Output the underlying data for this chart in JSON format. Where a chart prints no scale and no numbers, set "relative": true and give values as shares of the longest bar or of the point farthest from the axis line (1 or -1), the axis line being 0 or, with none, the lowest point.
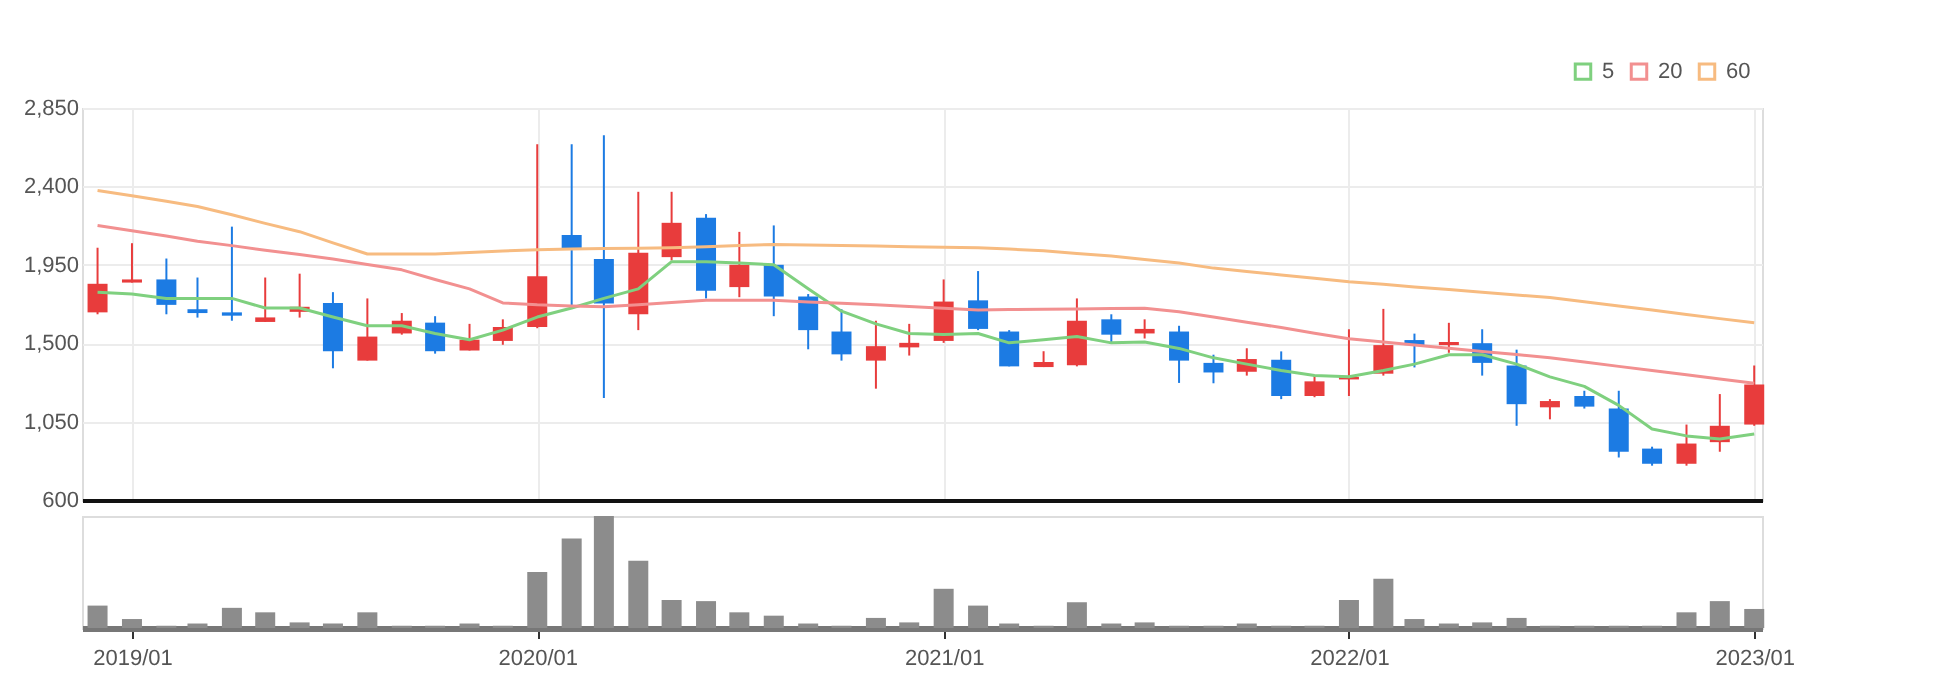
{
  "chart_data": [
    {
      "type": "candlestick",
      "x": [
        "2018-12",
        "2019-01",
        "2019-02",
        "2019-03",
        "2019-04",
        "2019-05",
        "2019-06",
        "2019-07",
        "2019-08",
        "2019-09",
        "2019-10",
        "2019-11",
        "2019-12",
        "2020-01",
        "2020-02",
        "2020-03",
        "2020-04",
        "2020-05",
        "2020-06",
        "2020-07",
        "2020-08",
        "2020-09",
        "2020-10",
        "2020-11",
        "2020-12",
        "2021-01",
        "2021-02",
        "2021-03",
        "2021-04",
        "2021-05",
        "2021-06",
        "2021-07",
        "2021-08",
        "2021-09",
        "2021-10",
        "2021-11",
        "2021-12",
        "2022-01",
        "2022-02",
        "2022-03",
        "2022-04",
        "2022-05",
        "2022-06",
        "2022-07",
        "2022-08",
        "2022-09",
        "2022-10",
        "2022-11",
        "2022-12",
        "2023-01"
      ],
      "ohlc": [
        [
          1677,
          2048,
          1666,
          1841
        ],
        [
          1848,
          2074,
          1848,
          1866
        ],
        [
          1866,
          1986,
          1666,
          1720
        ],
        [
          1695,
          1877,
          1647,
          1673
        ],
        [
          1677,
          2169,
          1629,
          1658
        ],
        [
          1622,
          1877,
          1622,
          1648
        ],
        [
          1680,
          1899,
          1647,
          1709
        ],
        [
          1731,
          1793,
          1356,
          1454
        ],
        [
          1400,
          1757,
          1400,
          1538
        ],
        [
          1556,
          1673,
          1549,
          1629
        ],
        [
          1618,
          1655,
          1440,
          1454
        ],
        [
          1458,
          1611,
          1458,
          1520
        ],
        [
          1513,
          1637,
          1491,
          1593
        ],
        [
          1593,
          2642,
          1586,
          1884
        ],
        [
          2121,
          2642,
          1702,
          2037
        ],
        [
          1983,
          2693,
          1185,
          1728
        ],
        [
          1666,
          2369,
          1575,
          2019
        ],
        [
          1994,
          2369,
          1975,
          2191
        ],
        [
          2220,
          2241,
          1757,
          1801
        ],
        [
          1822,
          2139,
          1764,
          1950
        ],
        [
          1950,
          2176,
          1655,
          1768
        ],
        [
          1768,
          1782,
          1465,
          1575
        ],
        [
          1567,
          1695,
          1400,
          1436
        ],
        [
          1400,
          1629,
          1239,
          1483
        ],
        [
          1476,
          1611,
          1429,
          1502
        ],
        [
          1513,
          1866,
          1502,
          1739
        ],
        [
          1746,
          1914,
          1575,
          1582
        ],
        [
          1567,
          1575,
          1367,
          1367
        ],
        [
          1363,
          1454,
          1363,
          1392
        ],
        [
          1374,
          1757,
          1367,
          1629
        ],
        [
          1637,
          1666,
          1502,
          1549
        ],
        [
          1556,
          1637,
          1527,
          1582
        ],
        [
          1567,
          1600,
          1272,
          1400
        ],
        [
          1387,
          1434,
          1270,
          1332
        ],
        [
          1336,
          1471,
          1314,
          1409
        ],
        [
          1405,
          1453,
          1179,
          1197
        ],
        [
          1197,
          1314,
          1190,
          1281
        ],
        [
          1292,
          1580,
          1197,
          1307
        ],
        [
          1325,
          1697,
          1314,
          1489
        ],
        [
          1518,
          1555,
          1361,
          1489
        ],
        [
          1489,
          1617,
          1445,
          1507
        ],
        [
          1500,
          1580,
          1314,
          1387
        ],
        [
          1372,
          1463,
          1026,
          1150
        ],
        [
          1132,
          1179,
          1063,
          1168
        ],
        [
          1197,
          1227,
          1125,
          1136
        ],
        [
          1125,
          1227,
          844,
          877
        ],
        [
          895,
          906,
          797,
          808
        ],
        [
          808,
          1033,
          797,
          924
        ],
        [
          932,
          1208,
          877,
          1026
        ],
        [
          1033,
          1372,
          1026,
          1263
        ]
      ],
      "colors": [
        "#e83c3c",
        "#e83c3c",
        "#1c7be3",
        "#1c7be3",
        "#1c7be3",
        "#e83c3c",
        "#e83c3c",
        "#1c7be3",
        "#e83c3c",
        "#e83c3c",
        "#1c7be3",
        "#e83c3c",
        "#e83c3c",
        "#e83c3c",
        "#1c7be3",
        "#1c7be3",
        "#e83c3c",
        "#e83c3c",
        "#1c7be3",
        "#e83c3c",
        "#1c7be3",
        "#1c7be3",
        "#1c7be3",
        "#e83c3c",
        "#e83c3c",
        "#e83c3c",
        "#1c7be3",
        "#1c7be3",
        "#e83c3c",
        "#e83c3c",
        "#1c7be3",
        "#e83c3c",
        "#1c7be3",
        "#1c7be3",
        "#e83c3c",
        "#1c7be3",
        "#e83c3c",
        "#e83c3c",
        "#e83c3c",
        "#1c7be3",
        "#e83c3c",
        "#1c7be3",
        "#1c7be3",
        "#e83c3c",
        "#1c7be3",
        "#1c7be3",
        "#1c7be3",
        "#e83c3c",
        "#e83c3c",
        "#e83c3c"
      ],
      "series": [
        {
          "type": "line",
          "name": "5",
          "color": "#7fd07f",
          "values": [
            1793,
            1782,
            1757,
            1757,
            1757,
            1702,
            1702,
            1650,
            1600,
            1600,
            1556,
            1520,
            1575,
            1650,
            1702,
            1757,
            1812,
            1968,
            1968,
            1960,
            1950,
            1812,
            1684,
            1611,
            1556,
            1550,
            1556,
            1502,
            1520,
            1538,
            1502,
            1507,
            1470,
            1416,
            1380,
            1343,
            1314,
            1307,
            1343,
            1380,
            1434,
            1434,
            1380,
            1307,
            1252,
            1143,
            1008,
            968,
            950,
            979
          ]
        },
        {
          "type": "line",
          "name": "20",
          "color": "#f29090",
          "values": [
            2176,
            2146,
            2115,
            2085,
            2060,
            2034,
            2009,
            1983,
            1952,
            1921,
            1866,
            1812,
            1731,
            1720,
            1714,
            1709,
            1721,
            1734,
            1746,
            1746,
            1746,
            1737,
            1729,
            1720,
            1710,
            1700,
            1691,
            1693,
            1695,
            1697,
            1699,
            1700,
            1680,
            1650,
            1620,
            1590,
            1557,
            1525,
            1507,
            1489,
            1471,
            1453,
            1435,
            1416,
            1392,
            1367,
            1343,
            1319,
            1294,
            1270
          ]
        },
        {
          "type": "line",
          "name": "60",
          "color": "#f7bb80",
          "values": [
            2376,
            2346,
            2315,
            2285,
            2237,
            2188,
            2140,
            2076,
            2012,
            2012,
            2012,
            2020,
            2029,
            2037,
            2040,
            2043,
            2045,
            2048,
            2054,
            2061,
            2067,
            2064,
            2061,
            2058,
            2054,
            2051,
            2048,
            2040,
            2030,
            2015,
            2000,
            1980,
            1960,
            1931,
            1912,
            1892,
            1873,
            1853,
            1838,
            1823,
            1808,
            1792,
            1777,
            1762,
            1738,
            1714,
            1690,
            1665,
            1641,
            1617
          ]
        }
      ],
      "xlim": [
        "2018-11-17",
        "2023-01-08"
      ],
      "xticks": [
        {
          "value": "2019-01",
          "label": null
        },
        {
          "value": "2020-01",
          "label": null
        },
        {
          "value": "2021-01",
          "label": null
        },
        {
          "value": "2022-01",
          "label": null
        },
        {
          "value": "2023-01",
          "label": null
        }
      ],
      "ylim": [
        600,
        2850
      ],
      "yticks": [
        600,
        {
          "value": 1050,
          "label": "1,050"
        },
        {
          "value": 1500,
          "label": "1,500"
        },
        {
          "value": 1950,
          "label": "1,950"
        },
        {
          "value": 2400,
          "label": "2,400"
        },
        {
          "value": 2850,
          "label": "2,850"
        }
      ],
      "grid": true,
      "legend": "top right",
      "tick_labels": "y"
    },
    {
      "type": "bar",
      "relative": true,
      "x": [
        "2018-12",
        "2019-01",
        "2019-02",
        "2019-03",
        "2019-04",
        "2019-05",
        "2019-06",
        "2019-07",
        "2019-08",
        "2019-09",
        "2019-10",
        "2019-11",
        "2019-12",
        "2020-01",
        "2020-02",
        "2020-03",
        "2020-04",
        "2020-05",
        "2020-06",
        "2020-07",
        "2020-08",
        "2020-09",
        "2020-10",
        "2020-11",
        "2020-12",
        "2021-01",
        "2021-02",
        "2021-03",
        "2021-04",
        "2021-05",
        "2021-06",
        "2021-07",
        "2021-08",
        "2021-09",
        "2021-10",
        "2021-11",
        "2021-12",
        "2022-01",
        "2022-02",
        "2022-03",
        "2022-04",
        "2022-05",
        "2022-06",
        "2022-07",
        "2022-08",
        "2022-09",
        "2022-10",
        "2022-11",
        "2022-12",
        "2023-01"
      ],
      "values": [
        0.2,
        0.08,
        0.02,
        0.04,
        0.18,
        0.14,
        0.05,
        0.04,
        0.14,
        0.02,
        0.02,
        0.04,
        0.02,
        0.5,
        0.8,
        1,
        0.6,
        0.25,
        0.24,
        0.14,
        0.11,
        0.04,
        0.02,
        0.09,
        0.05,
        0.35,
        0.2,
        0.04,
        0.02,
        0.23,
        0.04,
        0.05,
        0.02,
        0.02,
        0.04,
        0.02,
        0.02,
        0.25,
        0.44,
        0.08,
        0.04,
        0.05,
        0.09,
        0.02,
        0.02,
        0.02,
        0.02,
        0.14,
        0.24,
        0.17
      ],
      "color": "#8c8c8c",
      "xlim": [
        "2018-11-17",
        "2023-01-08"
      ],
      "xticks": [
        {
          "value": "2019-01",
          "label": "2019/01"
        },
        {
          "value": "2020-01",
          "label": "2020/01"
        },
        {
          "value": "2021-01",
          "label": "2021/01"
        },
        {
          "value": "2022-01",
          "label": "2022/01"
        },
        {
          "value": "2023-01",
          "label": "2023/01"
        }
      ]
    }
  ]
}
